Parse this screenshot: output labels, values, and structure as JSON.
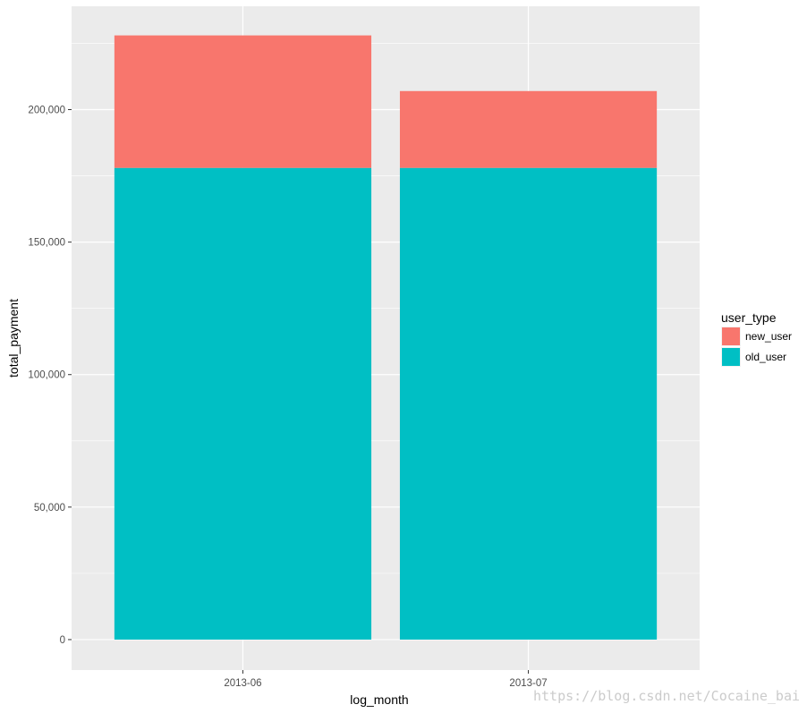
{
  "chart_data": {
    "type": "bar",
    "stacked": true,
    "categories": [
      "2013-06",
      "2013-07"
    ],
    "series": [
      {
        "name": "old_user",
        "values": [
          178000,
          178000
        ],
        "color": "#00BFC4"
      },
      {
        "name": "new_user",
        "values": [
          50000,
          29000
        ],
        "color": "#F8766D"
      }
    ],
    "xlabel": "log_month",
    "ylabel": "total_payment",
    "ylim": [
      -11500,
      239000
    ],
    "yticks": [
      0,
      50000,
      100000,
      150000,
      200000
    ],
    "ytick_labels": [
      "0",
      "50,000",
      "100,000",
      "150,000",
      "200,000"
    ],
    "grid": true,
    "legend": {
      "title": "user_type",
      "position": "right",
      "entries": [
        {
          "label": "new_user",
          "color": "#F8766D"
        },
        {
          "label": "old_user",
          "color": "#00BFC4"
        }
      ]
    },
    "panel_background": "#EBEBEB",
    "grid_color": "#FFFFFF"
  },
  "watermark": "https://blog.csdn.net/Cocaine_bai"
}
